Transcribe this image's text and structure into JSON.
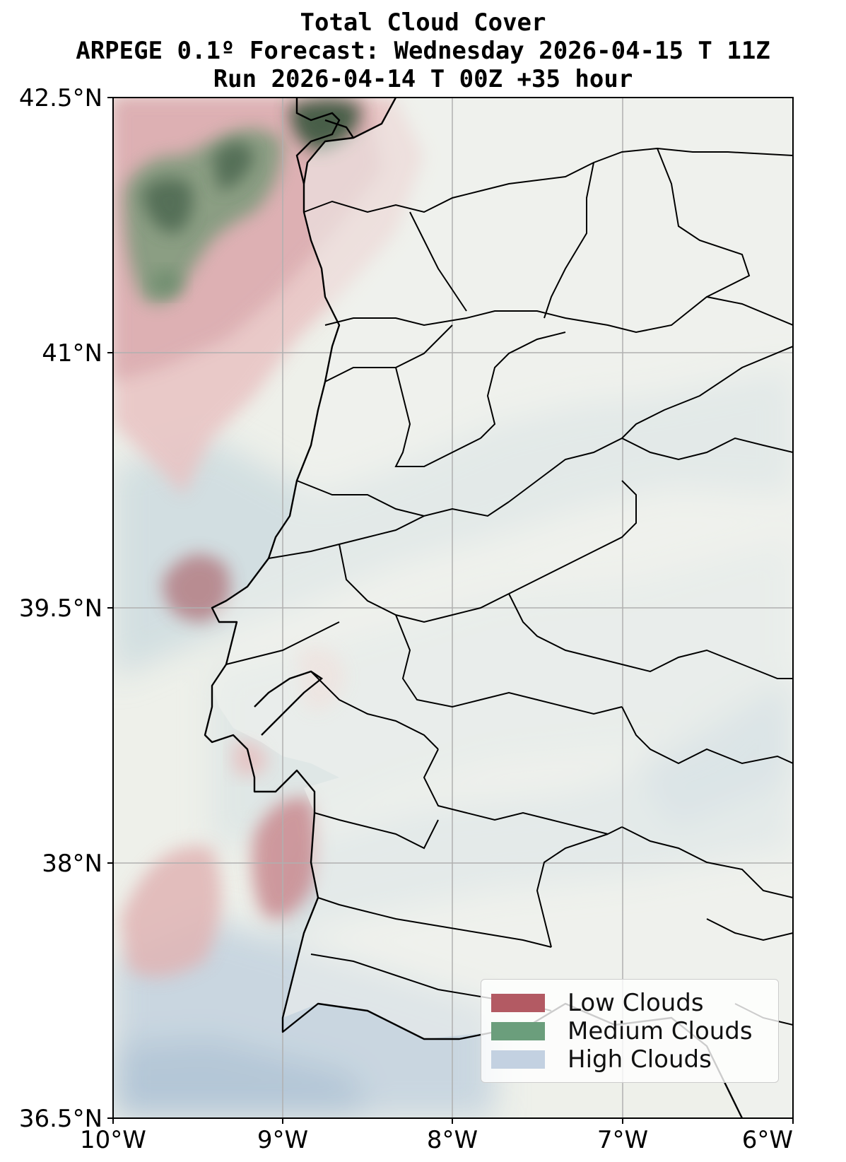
{
  "title": {
    "line1": "Total Cloud Cover",
    "line2": "ARPEGE 0.1º Forecast: Wednesday 2026-04-15 T 11Z",
    "line3": "Run 2026-04-14 T 00Z +35 hour"
  },
  "axes": {
    "lat_labels": [
      "42.5°N",
      "41°N",
      "39.5°N",
      "38°N",
      "36.5°N"
    ],
    "lon_labels": [
      "10°W",
      "9°W",
      "8°W",
      "7°W",
      "6°W"
    ],
    "lat_range": [
      36.5,
      42.5
    ],
    "lon_range": [
      -10,
      -6
    ],
    "grid": true
  },
  "legend": {
    "position": "bottom-right",
    "items": [
      {
        "label": "Low Clouds",
        "color": "#b35a63"
      },
      {
        "label": "Medium Clouds",
        "color": "#6b9e7c"
      },
      {
        "label": "High Clouds",
        "color": "#c3d1e1"
      }
    ]
  },
  "colors": {
    "land": "#eff1ec",
    "low_cloud": "#b35a63",
    "medium_cloud": "#6b9e7c",
    "high_cloud": "#c3d1e1",
    "grid": "#b0b0b0",
    "border": "#000000"
  }
}
